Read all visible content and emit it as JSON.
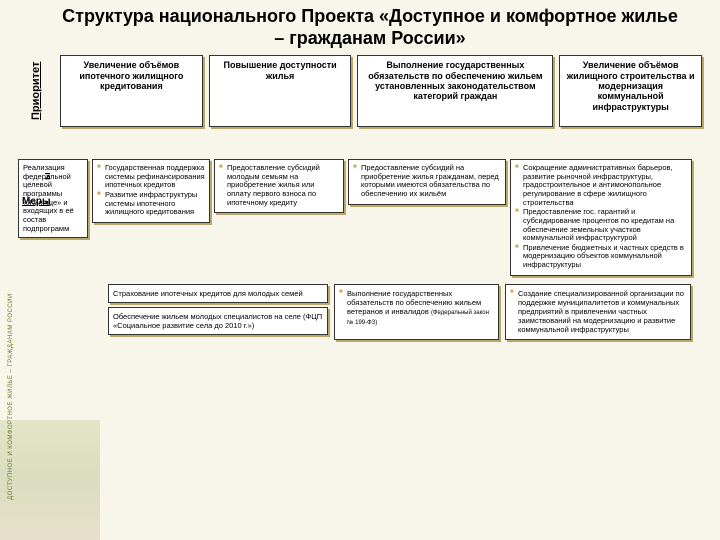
{
  "title": "Структура национального Проекта «Доступное и комфортное жилье – гражданам России»",
  "vlabel_priority": "Приоритет",
  "vlabel_priority2": "ы",
  "vlabel_left": "ДОСТУПНОЕ И КОМФОРТНОЕ ЖИЛЬЕ – ГРАЖДАНАМ РОССИИ",
  "measures_label": "Меры",
  "priorities": {
    "p1": "Увеличение объёмов ипотечного жилищного кредитования",
    "p2": "Повышение доступности жилья",
    "p3": "Выполнение государственных обязательств по обеспечению жильем установленных законодательством категорий граждан",
    "p4": "Увеличение объёмов жилищного строительства и модернизация коммунальной инфраструктуры"
  },
  "col1": {
    "b1": "Реализация федеральной целевой программы «Жилище» и входящих в её состав подпрограмм"
  },
  "col2": {
    "i1": "Государственная поддержка системы рефинансирования ипотечных кредитов",
    "i2": "Развитие инфраструктуры системы ипотечного жилищного кредитования"
  },
  "col3": {
    "i1": "Предоставление субсидий молодым семьям на приобретение жилья или оплату первого взноса по ипотечному кредиту"
  },
  "col4": {
    "i1": "Предоставление субсидий на приобретение жилья гражданам, перед которыми имеются обязательства по обеспечению их жильём"
  },
  "col5": {
    "i1": "Сокращение административных барьеров, развитие рыночной инфраструктуры, градостроительное и антимонопольное регулирование в сфере жилищного строительства",
    "i2": "Предоставление гос. гарантий и субсидирование процентов по кредитам на обеспечение земельных участков коммунальной инфраструктурой",
    "i3": "Привлечение бюджетных и частных средств в модернизацию объектов коммунальной инфраструктуры"
  },
  "bottom": {
    "b1a": "Страхование ипотечных кредитов для молодых семей",
    "b1b": "Обеспечение жильем молодых специалистов на селе (ФЦП «Социальное развитие села до 2010 г.»)",
    "b2a": "Выполнение государственных обязательств по обеспечению жильем ветеранов и инвалидов",
    "b2b": "(Федеральный закон № 199-ФЗ)",
    "b3": "Создание специализированной организации по поддержке муниципалитетов и коммунальных предприятий в привлечении частных заимствований на модернизацию и развитие коммунальной инфраструктуры"
  },
  "colors": {
    "bg": "#f8f5ea",
    "shadow": "#b8a86a",
    "bullet": "#d4a848"
  }
}
